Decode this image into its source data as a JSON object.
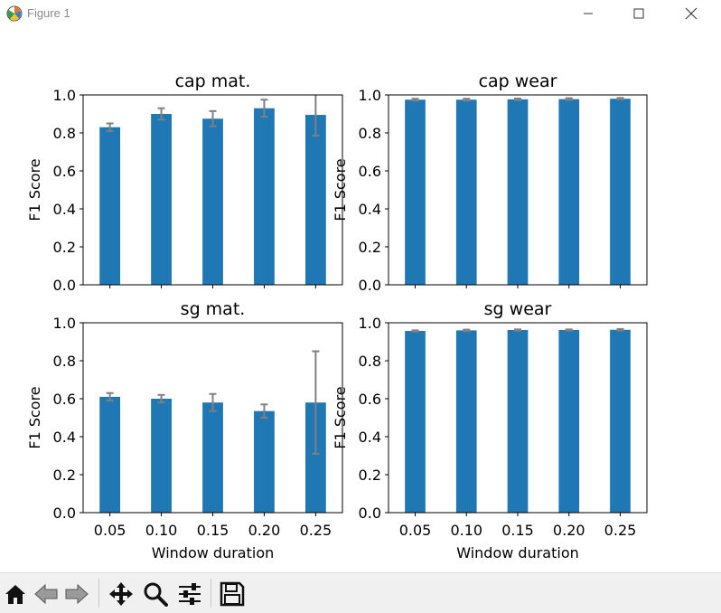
{
  "window": {
    "title": "Figure 1",
    "icon": "matplotlib-icon",
    "controls": [
      "minimize-icon",
      "maximize-icon",
      "close-icon"
    ]
  },
  "toolbar": {
    "buttons": [
      "home-icon",
      "back-icon",
      "forward-icon",
      "pan-icon",
      "zoom-icon",
      "configure-subplots-icon",
      "save-icon"
    ]
  },
  "colors": {
    "bar": "#1f77b4",
    "errorbar": "#808080"
  },
  "chart_data": [
    {
      "type": "bar",
      "title": "cap mat.",
      "categories": [
        "0.05",
        "0.10",
        "0.15",
        "0.20",
        "0.25"
      ],
      "values": [
        0.83,
        0.9,
        0.875,
        0.93,
        0.895
      ],
      "errors": [
        0.02,
        0.03,
        0.04,
        0.045,
        0.11
      ],
      "ylabel": "F1 Score",
      "xlabel": "",
      "ylim": [
        0,
        1
      ],
      "yticks": [
        "0.0",
        "0.2",
        "0.4",
        "0.6",
        "0.8",
        "1.0"
      ],
      "show_xticklabels": false
    },
    {
      "type": "bar",
      "title": "cap wear",
      "categories": [
        "0.05",
        "0.10",
        "0.15",
        "0.20",
        "0.25"
      ],
      "values": [
        0.975,
        0.975,
        0.977,
        0.978,
        0.98
      ],
      "errors": [
        0.005,
        0.005,
        0.004,
        0.005,
        0.004
      ],
      "ylabel": "F1 Score",
      "xlabel": "",
      "ylim": [
        0,
        1
      ],
      "yticks": [
        "0.0",
        "0.2",
        "0.4",
        "0.6",
        "0.8",
        "1.0"
      ],
      "show_xticklabels": false
    },
    {
      "type": "bar",
      "title": "sg mat.",
      "categories": [
        "0.05",
        "0.10",
        "0.15",
        "0.20",
        "0.25"
      ],
      "values": [
        0.61,
        0.6,
        0.58,
        0.535,
        0.58
      ],
      "errors": [
        0.02,
        0.02,
        0.045,
        0.035,
        0.27
      ],
      "ylabel": "F1 Score",
      "xlabel": "Window duration",
      "ylim": [
        0,
        1
      ],
      "yticks": [
        "0.0",
        "0.2",
        "0.4",
        "0.6",
        "0.8",
        "1.0"
      ],
      "show_xticklabels": true
    },
    {
      "type": "bar",
      "title": "sg wear",
      "categories": [
        "0.05",
        "0.10",
        "0.15",
        "0.20",
        "0.25"
      ],
      "values": [
        0.957,
        0.96,
        0.962,
        0.962,
        0.963
      ],
      "errors": [
        0.003,
        0.004,
        0.003,
        0.003,
        0.004
      ],
      "ylabel": "F1 Score",
      "xlabel": "Window duration",
      "ylim": [
        0,
        1
      ],
      "yticks": [
        "0.0",
        "0.2",
        "0.4",
        "0.6",
        "0.8",
        "1.0"
      ],
      "show_xticklabels": true
    }
  ]
}
